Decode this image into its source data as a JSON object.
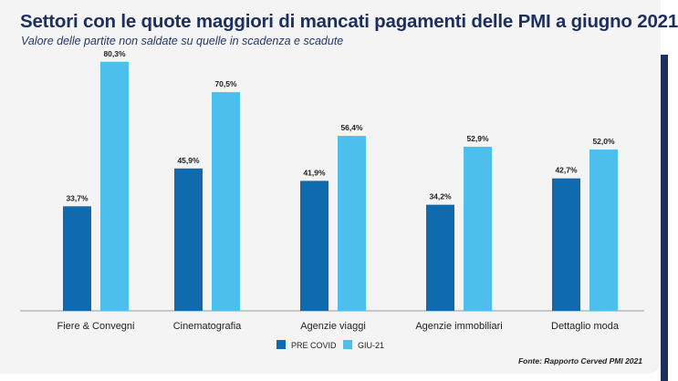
{
  "title": "Settori con le quote maggiori di mancati pagamenti delle PMI a giugno 2021",
  "subtitle": "Valore delle partite non saldate su quelle in scadenza e scadute",
  "source": "Fonte: Rapporto Cerved PMI 2021",
  "colors": {
    "pre_covid": "#0f6aae",
    "giu_21": "#4dbfec",
    "title": "#1c2f5e",
    "accent_edge": "#1c2f5e"
  },
  "chart_data": {
    "type": "bar",
    "categories": [
      "Fiere & Convegni",
      "Cinematografia",
      "Agenzie viaggi",
      "Agenzie immobiliari",
      "Dettaglio moda"
    ],
    "series": [
      {
        "name": "PRE COVID",
        "values": [
          33.7,
          45.9,
          41.9,
          34.2,
          42.7
        ],
        "labels": [
          "33,7%",
          "45,9%",
          "41,9%",
          "34,2%",
          "42,7%"
        ]
      },
      {
        "name": "GIU-21",
        "values": [
          80.3,
          70.5,
          56.4,
          52.9,
          52.0
        ],
        "labels": [
          "80,3%",
          "70,5%",
          "56,4%",
          "52,9%",
          "52,0%"
        ]
      }
    ],
    "ylim": [
      0,
      100
    ],
    "grid": false,
    "legend_position": "bottom-center"
  }
}
